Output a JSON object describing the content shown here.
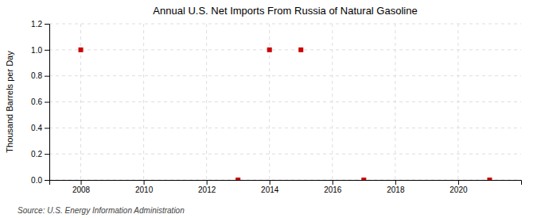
{
  "chart_data": {
    "type": "scatter",
    "title": "Annual U.S. Net Imports From Russia of Natural Gasoline",
    "y_label": "Thousand Barrels per Day",
    "annotation": "Source: U.S. Energy Information Administration",
    "x": [
      2008,
      2013,
      2014,
      2015,
      2017,
      2021
    ],
    "values": [
      1.0,
      0.0,
      1.0,
      1.0,
      0.0,
      0.0
    ],
    "color": "#cc0000",
    "marker": "square",
    "xlim": [
      2007.0,
      2022.0
    ],
    "ylim": [
      0.0,
      1.2
    ],
    "xticks": [
      2008,
      2010,
      2012,
      2014,
      2016,
      2018,
      2020
    ],
    "yticks": [
      {
        "value": 0.0,
        "label": "0.0"
      },
      0.2,
      0.4,
      0.6,
      0.8,
      {
        "value": 1.0,
        "label": "1.0"
      },
      1.2
    ],
    "grid": true
  }
}
